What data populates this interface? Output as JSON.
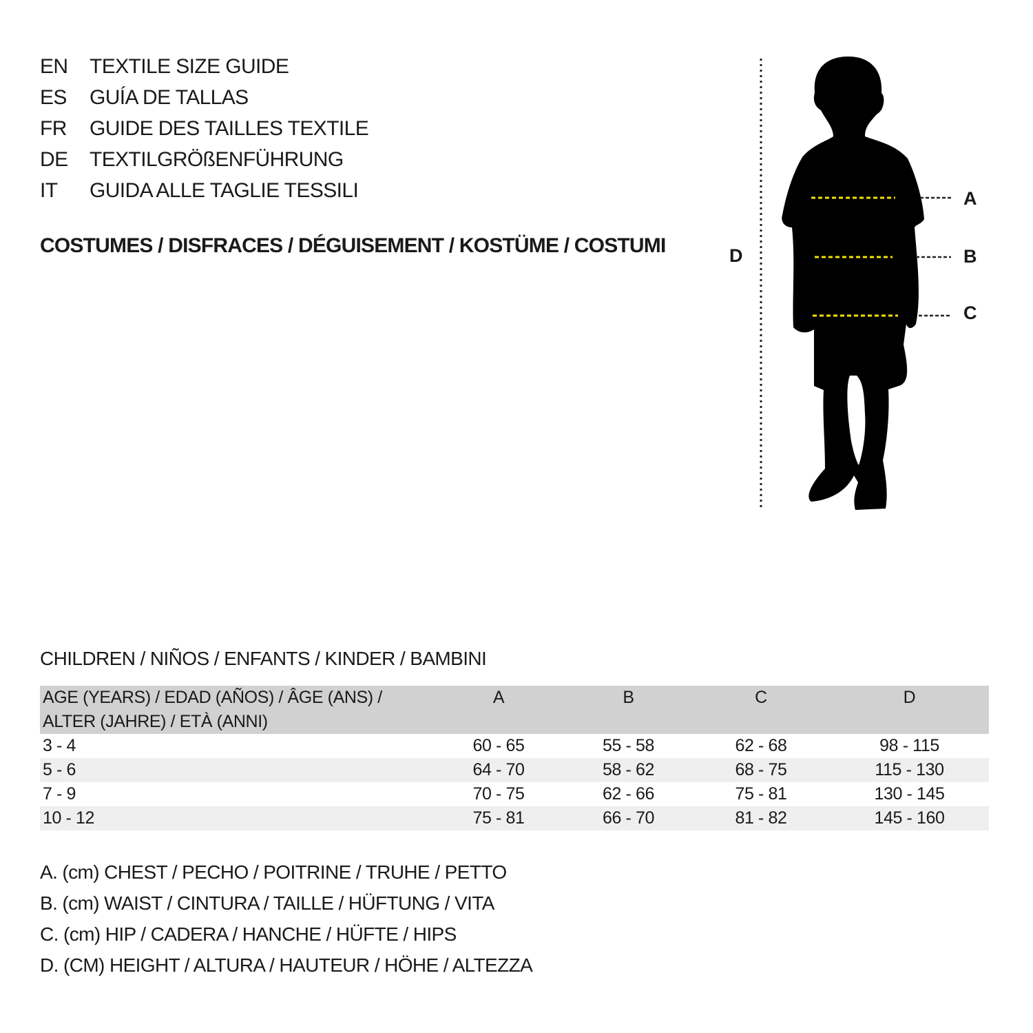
{
  "header": {
    "languages": [
      {
        "code": "EN",
        "title": "TEXTILE SIZE GUIDE"
      },
      {
        "code": "ES",
        "title": "GUÍA DE TALLAS"
      },
      {
        "code": "FR",
        "title": "GUIDE DES TAILLES TEXTILE"
      },
      {
        "code": "DE",
        "title": "TEXTILGRÖßENFÜHRUNG"
      },
      {
        "code": "IT",
        "title": "GUIDA ALLE TAGLIE TESSILI"
      }
    ],
    "category": "COSTUMES / DISFRACES / DÉGUISEMENT / KOSTÜME / COSTUMI"
  },
  "figure": {
    "labels": {
      "a": "A",
      "b": "B",
      "c": "C",
      "d": "D"
    },
    "colors": {
      "measure_line": "#f5e100",
      "silhouette": "#000000"
    }
  },
  "size_table": {
    "section_title": "CHILDREN / NIÑOS / ENFANTS / KINDER / BAMBINI",
    "headers": {
      "age_line1": "AGE (YEARS) / EDAD (AÑOS) / ÂGE (ANS) /",
      "age_line2": "ALTER (JAHRE) / ETÀ (ANNI)",
      "a": "A",
      "b": "B",
      "c": "C",
      "d": "D"
    },
    "rows": [
      {
        "age": "3 - 4",
        "a": "60 - 65",
        "b": "55 - 58",
        "c": "62 - 68",
        "d": "98 - 115"
      },
      {
        "age": "5 - 6",
        "a": "64 - 70",
        "b": "58 - 62",
        "c": "68 - 75",
        "d": "115 - 130"
      },
      {
        "age": "7 - 9",
        "a": "70 - 75",
        "b": "62 - 66",
        "c": "75 - 81",
        "d": "130 - 145"
      },
      {
        "age": "10 - 12",
        "a": "75 - 81",
        "b": "66 - 70",
        "c": "81 - 82",
        "d": "145 - 160"
      }
    ],
    "colors": {
      "header_bg": "#d1d1d1",
      "stripe_bg": "#efefef"
    }
  },
  "legend": [
    "A. (cm) CHEST / PECHO / POITRINE / TRUHE / PETTO",
    "B. (cm) WAIST / CINTURA / TAILLE / HÜFTUNG / VITA",
    "C. (cm) HIP / CADERA / HANCHE / HÜFTE / HIPS",
    "D. (CM) HEIGHT / ALTURA / HAUTEUR / HÖHE / ALTEZZA"
  ]
}
